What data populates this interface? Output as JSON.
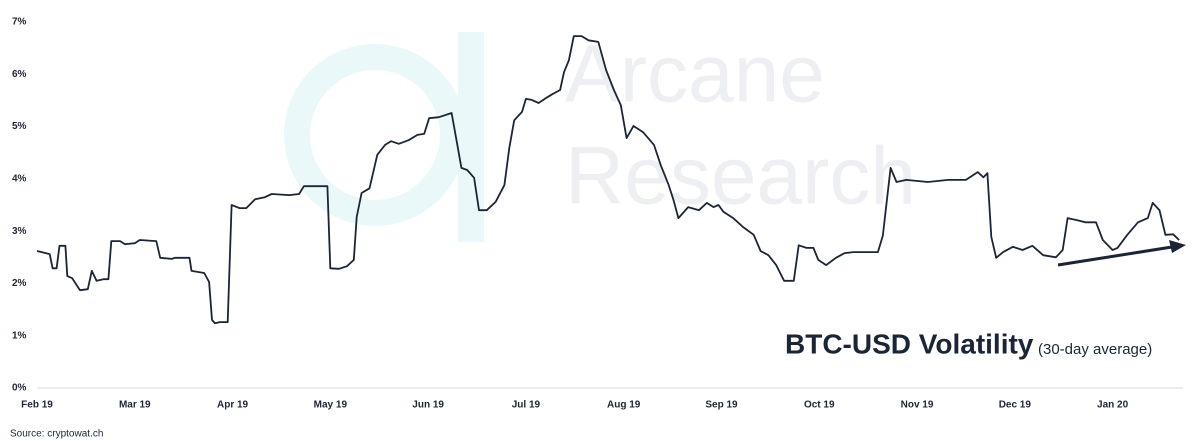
{
  "chart_data": {
    "type": "line",
    "title": "BTC-USD Volatility",
    "subtitle": "(30-day average)",
    "source": "Source: cryptowat.ch",
    "watermark": [
      "Arcane",
      "Research"
    ],
    "color": "#1b2536",
    "grid": false,
    "xlim": [
      0,
      11.72
    ],
    "xticks": [
      {
        "value": 0,
        "label": "Feb 19"
      },
      {
        "value": 1,
        "label": "Mar 19"
      },
      {
        "value": 2,
        "label": "Apr 19"
      },
      {
        "value": 3,
        "label": "May 19"
      },
      {
        "value": 4,
        "label": "Jun 19"
      },
      {
        "value": 5,
        "label": "Jul 19"
      },
      {
        "value": 6,
        "label": "Aug 19"
      },
      {
        "value": 7,
        "label": "Sep 19"
      },
      {
        "value": 8,
        "label": "Oct 19"
      },
      {
        "value": 9,
        "label": "Nov 19"
      },
      {
        "value": 10,
        "label": "Dec 19"
      },
      {
        "value": 11,
        "label": "Jan 20"
      }
    ],
    "ylim": [
      0,
      7
    ],
    "yticks": [
      {
        "value": 0,
        "label": "0%"
      },
      {
        "value": 1,
        "label": "1%"
      },
      {
        "value": 2,
        "label": "2%"
      },
      {
        "value": 3,
        "label": "3%"
      },
      {
        "value": 4,
        "label": "4%"
      },
      {
        "value": 5,
        "label": "5%"
      },
      {
        "value": 6,
        "label": "6%"
      },
      {
        "value": 7,
        "label": "7%"
      }
    ],
    "x": [
      0,
      0.13,
      0.16,
      0.2,
      0.23,
      0.29,
      0.31,
      0.36,
      0.44,
      0.52,
      0.56,
      0.61,
      0.68,
      0.73,
      0.76,
      0.85,
      0.9,
      1.0,
      1.05,
      1.22,
      1.26,
      1.38,
      1.41,
      1.56,
      1.58,
      1.71,
      1.76,
      1.79,
      1.82,
      1.87,
      1.95,
      1.99,
      2.07,
      2.14,
      2.23,
      2.33,
      2.4,
      2.58,
      2.68,
      2.73,
      2.97,
      3.0,
      3.09,
      3.17,
      3.24,
      3.27,
      3.32,
      3.4,
      3.48,
      3.56,
      3.62,
      3.7,
      3.8,
      3.89,
      3.96,
      4.01,
      4.11,
      4.24,
      4.29,
      4.34,
      4.4,
      4.47,
      4.52,
      4.6,
      4.69,
      4.78,
      4.83,
      4.88,
      4.96,
      5.0,
      5.06,
      5.13,
      5.21,
      5.27,
      5.35,
      5.39,
      5.44,
      5.49,
      5.57,
      5.64,
      5.74,
      5.82,
      5.9,
      5.97,
      6.03,
      6.1,
      6.2,
      6.31,
      6.38,
      6.46,
      6.51,
      6.56,
      6.66,
      6.77,
      6.85,
      6.92,
      6.97,
      7.02,
      7.12,
      7.22,
      7.33,
      7.4,
      7.48,
      7.56,
      7.64,
      7.74,
      7.79,
      7.87,
      7.94,
      7.99,
      8.07,
      8.17,
      8.26,
      8.35,
      8.5,
      8.6,
      8.65,
      8.73,
      8.79,
      8.89,
      9.11,
      9.32,
      9.5,
      9.62,
      9.68,
      9.72,
      9.76,
      9.81,
      9.88,
      9.98,
      10.08,
      10.18,
      10.29,
      10.42,
      10.49,
      10.54,
      10.64,
      10.72,
      10.83,
      10.9,
      11.0,
      11.05,
      11.15,
      11.26,
      11.36,
      11.41,
      11.48,
      11.54,
      11.62,
      11.68
    ],
    "values": [
      2.62,
      2.56,
      2.29,
      2.29,
      2.72,
      2.72,
      2.14,
      2.1,
      1.87,
      1.89,
      2.24,
      2.05,
      2.08,
      2.08,
      2.81,
      2.81,
      2.75,
      2.77,
      2.83,
      2.81,
      2.49,
      2.47,
      2.49,
      2.49,
      2.24,
      2.2,
      2.03,
      1.3,
      1.24,
      1.26,
      1.26,
      3.5,
      3.44,
      3.44,
      3.61,
      3.65,
      3.71,
      3.69,
      3.71,
      3.86,
      3.86,
      2.29,
      2.28,
      2.33,
      2.45,
      3.27,
      3.73,
      3.82,
      4.46,
      4.65,
      4.72,
      4.67,
      4.74,
      4.84,
      4.86,
      5.16,
      5.18,
      5.26,
      4.74,
      4.21,
      4.17,
      4.02,
      3.4,
      3.4,
      3.56,
      3.88,
      4.59,
      5.12,
      5.28,
      5.53,
      5.51,
      5.45,
      5.55,
      5.62,
      5.7,
      6.04,
      6.27,
      6.73,
      6.73,
      6.65,
      6.62,
      6.08,
      5.7,
      5.41,
      4.78,
      5.01,
      4.89,
      4.65,
      4.26,
      3.88,
      3.59,
      3.25,
      3.46,
      3.4,
      3.54,
      3.46,
      3.5,
      3.37,
      3.25,
      3.08,
      2.93,
      2.62,
      2.54,
      2.35,
      2.05,
      2.05,
      2.73,
      2.68,
      2.68,
      2.45,
      2.35,
      2.49,
      2.58,
      2.6,
      2.6,
      2.6,
      2.91,
      4.21,
      3.94,
      3.98,
      3.94,
      3.98,
      3.98,
      4.13,
      4.03,
      4.11,
      2.89,
      2.49,
      2.6,
      2.7,
      2.64,
      2.72,
      2.54,
      2.5,
      2.64,
      3.25,
      3.21,
      3.17,
      3.17,
      2.83,
      2.64,
      2.68,
      2.93,
      3.17,
      3.25,
      3.54,
      3.4,
      2.93,
      2.94,
      2.83
    ]
  }
}
